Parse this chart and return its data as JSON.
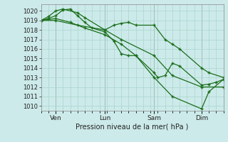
{
  "background_color": "#cdeaea",
  "grid_color": "#a8d5cc",
  "line_color": "#1a6e1a",
  "marker": "+",
  "xlabel": "Pression niveau de la mer( hPa )",
  "ylabel_values": [
    1010,
    1011,
    1012,
    1013,
    1014,
    1015,
    1016,
    1017,
    1018,
    1019,
    1020
  ],
  "ylim": [
    1009.5,
    1020.7
  ],
  "xlim": [
    0,
    100
  ],
  "xtick_positions": [
    8,
    35,
    62,
    88
  ],
  "xtick_labels": [
    "Ven",
    "Lun",
    "Sam",
    "Dim"
  ],
  "lines": [
    {
      "x": [
        0,
        4,
        8,
        12,
        20,
        24,
        35,
        40,
        44,
        48,
        52,
        62,
        68,
        72,
        76,
        88,
        92,
        100
      ],
      "y": [
        1019,
        1019.4,
        1020.0,
        1020.2,
        1019.8,
        1019.3,
        1018.0,
        1018.5,
        1018.7,
        1018.8,
        1018.5,
        1018.5,
        1017.0,
        1016.5,
        1016.0,
        1014.0,
        1013.5,
        1013.0
      ]
    },
    {
      "x": [
        0,
        4,
        8,
        12,
        16,
        20,
        24,
        28,
        35,
        40,
        44,
        48,
        52,
        62,
        64,
        68,
        72,
        76,
        88,
        92,
        96,
        100
      ],
      "y": [
        1019,
        1019.2,
        1019.5,
        1020.1,
        1020.2,
        1019.5,
        1018.8,
        1018.2,
        1017.8,
        1016.8,
        1015.5,
        1015.3,
        1015.3,
        1013.5,
        1013.0,
        1013.2,
        1014.5,
        1014.2,
        1012.2,
        1012.3,
        1012.5,
        1012.8
      ]
    },
    {
      "x": [
        0,
        8,
        16,
        24,
        35,
        44,
        52,
        62,
        72,
        88,
        92,
        100
      ],
      "y": [
        1019,
        1019.2,
        1018.8,
        1018.2,
        1017.5,
        1016.5,
        1015.3,
        1013.0,
        1011.0,
        1009.7,
        1011.5,
        1012.8
      ]
    },
    {
      "x": [
        0,
        8,
        20,
        35,
        44,
        62,
        72,
        88,
        100
      ],
      "y": [
        1019,
        1019.0,
        1018.5,
        1018.0,
        1017.0,
        1015.3,
        1013.2,
        1012.0,
        1012.0
      ]
    }
  ]
}
